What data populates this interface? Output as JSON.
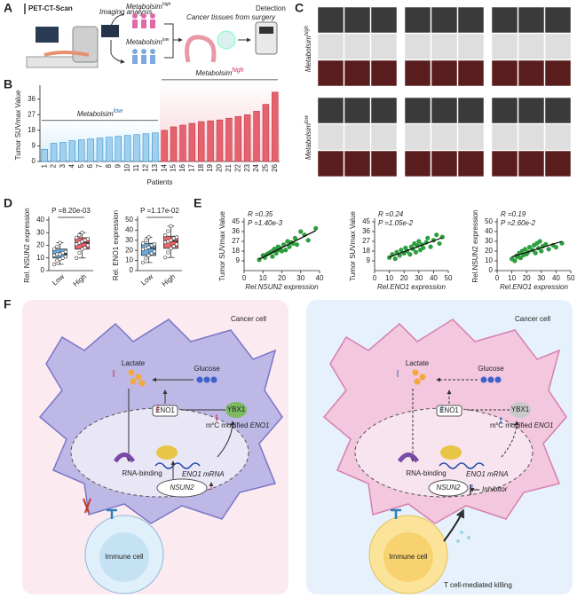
{
  "panel_labels": [
    "A",
    "B",
    "C",
    "D",
    "E",
    "F"
  ],
  "panel_a": {
    "title": "PET-CT-Scan",
    "step": "Imaging analysis",
    "high": [
      "Metabolsim",
      "high"
    ],
    "low": [
      "Metabolsim",
      "low"
    ],
    "surgery": "Cancer tissues from surgery",
    "detection": "Detection"
  },
  "panel_c": {
    "high": [
      "Metabolsim",
      "high"
    ],
    "low": [
      "Metabolsim",
      "low"
    ]
  },
  "panel_f": {
    "left": {
      "title": "Cancer cell",
      "lactate": "Lactate",
      "glucose": "Glucose",
      "eno1": "ENO1",
      "ybx1": "YBX1",
      "m5c": [
        "m",
        "5",
        "C modified ",
        "ENO1"
      ],
      "rna_binding": "RNA-binding",
      "mrna": "ENO1 mRNA",
      "nsun2": "NSUN2",
      "immune": "Immune cell"
    },
    "right": {
      "title": "Cancer cell",
      "lactate": "Lactate",
      "glucose": "Glucose",
      "eno1": "ENO1",
      "ybx1": "YBX1",
      "m5c": [
        "m",
        "5",
        "C modified ",
        "ENO1"
      ],
      "rna_binding": "RNA-binding",
      "mrna": "ENO1 mRNA",
      "nsun2": "NSUN2",
      "inhibitor": "Inhibitor",
      "immune": "Immune cell",
      "killing": "T cell-mediated killing"
    }
  },
  "chart_data": [
    {
      "type": "bar",
      "y_label": "Tumor SUVmax Value",
      "x_label": "Patients",
      "categories": [
        "1",
        "2",
        "3",
        "4",
        "5",
        "6",
        "7",
        "8",
        "9",
        "10",
        "11",
        "12",
        "13",
        "14",
        "15",
        "16",
        "17",
        "18",
        "19",
        "20",
        "21",
        "22",
        "23",
        "24",
        "25",
        "26"
      ],
      "series": [
        {
          "color": "#9fd1ee",
          "values": [
            7,
            10.5,
            11,
            12,
            12.5,
            13,
            13.5,
            14,
            14.5,
            15,
            15.5,
            16,
            16.5,
            null,
            null,
            null,
            null,
            null,
            null,
            null,
            null,
            null,
            null,
            null,
            null,
            null
          ]
        },
        {
          "color": "#e5636f",
          "values": [
            null,
            null,
            null,
            null,
            null,
            null,
            null,
            null,
            null,
            null,
            null,
            null,
            null,
            18,
            20,
            21,
            22,
            23,
            23.5,
            24,
            25,
            26,
            27,
            29,
            33,
            40
          ]
        }
      ],
      "annotations": [
        [
          "Metabolsim",
          "low"
        ],
        [
          "Metabolsim",
          "high"
        ]
      ],
      "ylim": [
        0,
        42
      ],
      "yticks": [
        0,
        9,
        18,
        27,
        36
      ]
    },
    {
      "type": "box",
      "title": "P =8.20e-03",
      "y_label": "Rel. NSUN2 expression",
      "categories": [
        "Low",
        "High"
      ],
      "colors": [
        "#3a8fd0",
        "#e0303a"
      ],
      "boxes": [
        {
          "min": 5,
          "q1": 10,
          "median": 13,
          "q3": 17,
          "max": 22,
          "points": [
            5,
            8,
            9,
            10,
            11,
            12,
            13,
            13,
            14,
            15,
            17,
            19,
            22
          ]
        },
        {
          "min": 10,
          "q1": 17,
          "median": 22,
          "q3": 26,
          "max": 30,
          "points": [
            10,
            14,
            17,
            18,
            20,
            21,
            22,
            23,
            24,
            25,
            26,
            28,
            30
          ]
        }
      ],
      "ylim": [
        0,
        40
      ],
      "yticks": [
        0,
        10,
        20,
        30,
        40
      ]
    },
    {
      "type": "box",
      "title": "P =1.17e-02",
      "y_label": "Rel. ENO1 expression",
      "categories": [
        "Low",
        "High"
      ],
      "colors": [
        "#3a8fd0",
        "#e0303a"
      ],
      "boxes": [
        {
          "min": 8,
          "q1": 15,
          "median": 22,
          "q3": 27,
          "max": 33,
          "points": [
            8,
            12,
            15,
            17,
            19,
            21,
            22,
            23,
            25,
            26,
            27,
            30,
            33
          ]
        },
        {
          "min": 13,
          "q1": 22,
          "median": 29,
          "q3": 34,
          "max": 44,
          "points": [
            13,
            18,
            22,
            24,
            26,
            28,
            29,
            30,
            32,
            33,
            35,
            39,
            44
          ]
        }
      ],
      "ylim": [
        0,
        50
      ],
      "yticks": [
        0,
        10,
        20,
        30,
        40,
        50
      ]
    },
    {
      "type": "scatter",
      "annotations": [
        "R =0.35",
        "P =1.40e-3"
      ],
      "x_label": "Rel.NSUN2 expression",
      "y_label": "Tumor SUVmax Value",
      "color": "#2e9e3e",
      "x": [
        8,
        10,
        11,
        12,
        13,
        14,
        15,
        15,
        16,
        17,
        18,
        18,
        19,
        20,
        21,
        22,
        23,
        24,
        25,
        26,
        27,
        28,
        30,
        32,
        34,
        38
      ],
      "y": [
        10,
        14,
        12,
        15,
        16,
        17,
        13,
        18,
        20,
        16,
        19,
        22,
        21,
        18,
        24,
        19,
        27,
        22,
        26,
        25,
        30,
        24,
        36,
        33,
        28,
        39
      ],
      "xlim": [
        0,
        40
      ],
      "xticks": [
        0,
        10,
        20,
        30,
        40
      ],
      "ylim": [
        0,
        45
      ],
      "yticks": [
        9,
        18,
        27,
        36,
        45
      ]
    },
    {
      "type": "scatter",
      "annotations": [
        "R =0.24",
        "P =1.05e-2"
      ],
      "x_label": "Rel.ENO1 expression",
      "y_label": "Tumor SUVmax Value",
      "color": "#2e9e3e",
      "x": [
        10,
        12,
        14,
        15,
        17,
        18,
        20,
        21,
        22,
        24,
        25,
        26,
        27,
        28,
        29,
        30,
        31,
        32,
        33,
        35,
        36,
        38,
        40,
        42,
        44,
        46
      ],
      "y": [
        12,
        15,
        11,
        17,
        14,
        19,
        16,
        21,
        18,
        15,
        22,
        20,
        25,
        17,
        23,
        27,
        19,
        24,
        21,
        26,
        30,
        22,
        28,
        33,
        25,
        31
      ],
      "xlim": [
        0,
        50
      ],
      "xticks": [
        0,
        10,
        20,
        30,
        40,
        50
      ],
      "ylim": [
        0,
        45
      ],
      "yticks": [
        9,
        18,
        27,
        36,
        45
      ]
    },
    {
      "type": "scatter",
      "annotations": [
        "R =0.19",
        "P =2.60e-2"
      ],
      "x_label": "Rel.ENO1 expression",
      "y_label": "Rel.NSUN2 expression",
      "color": "#2e9e3e",
      "x": [
        10,
        12,
        13,
        14,
        15,
        16,
        17,
        18,
        19,
        20,
        21,
        22,
        24,
        25,
        26,
        27,
        28,
        29,
        30,
        31,
        33,
        35,
        38,
        40,
        44
      ],
      "y": [
        12,
        10,
        15,
        14,
        18,
        13,
        20,
        16,
        22,
        17,
        19,
        24,
        21,
        26,
        18,
        28,
        23,
        30,
        20,
        25,
        27,
        22,
        26,
        24,
        28
      ],
      "xlim": [
        0,
        50
      ],
      "xticks": [
        0,
        10,
        20,
        30,
        40,
        50
      ],
      "ylim": [
        0,
        50
      ],
      "yticks": [
        0,
        10,
        20,
        30,
        40,
        50
      ]
    }
  ]
}
